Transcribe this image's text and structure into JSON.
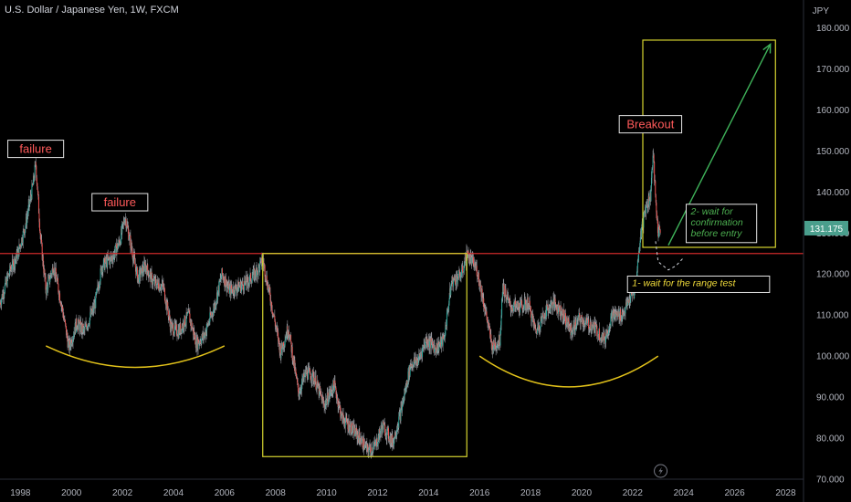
{
  "header": {
    "symbol_title": "U.S. Dollar / Japanese Yen, 1W, FXCM",
    "currency": "JPY"
  },
  "colors": {
    "background": "#000000",
    "candle_up": "#26a69a",
    "candle_down": "#ef5350",
    "wick": "#b0b3ba",
    "resistance": "#cc2a2a",
    "box": "#d6d430",
    "arc": "#e2c21a",
    "arrow": "#3fb35a",
    "label_red": "#ff5a5a",
    "label_green": "#4caf50",
    "label_yellow": "#f2dd3b",
    "price_badge": "#4a9e8c"
  },
  "chart_data": {
    "type": "candlestick",
    "title": "U.S. Dollar / Japanese Yen, 1W, FXCM",
    "xlim": [
      1997.2,
      2028.7
    ],
    "ylim": [
      70,
      185
    ],
    "x_ticks": [
      "1998",
      "2000",
      "2002",
      "2004",
      "2006",
      "2008",
      "2010",
      "2012",
      "2014",
      "2016",
      "2018",
      "2020",
      "2022",
      "2024",
      "2026",
      "2028"
    ],
    "y_ticks": [
      "70.000",
      "80.000",
      "90.000",
      "100.000",
      "110.000",
      "120.000",
      "130.000",
      "140.000",
      "150.000",
      "160.000",
      "170.000",
      "180.000"
    ],
    "last_price": "131.175",
    "last_price_value": 131.175,
    "price_path": [
      [
        1997.2,
        113
      ],
      [
        1997.6,
        121
      ],
      [
        1997.9,
        125
      ],
      [
        1998.2,
        132
      ],
      [
        1998.5,
        142
      ],
      [
        1998.6,
        147
      ],
      [
        1998.8,
        128
      ],
      [
        1999.0,
        116
      ],
      [
        1999.3,
        122
      ],
      [
        1999.6,
        113
      ],
      [
        1999.9,
        102
      ],
      [
        2000.2,
        108
      ],
      [
        2000.5,
        106
      ],
      [
        2000.9,
        112
      ],
      [
        2001.2,
        122
      ],
      [
        2001.6,
        124
      ],
      [
        2001.9,
        128
      ],
      [
        2002.1,
        134
      ],
      [
        2002.3,
        128
      ],
      [
        2002.6,
        119
      ],
      [
        2002.9,
        122
      ],
      [
        2003.2,
        118
      ],
      [
        2003.6,
        117
      ],
      [
        2003.9,
        107
      ],
      [
        2004.2,
        106
      ],
      [
        2004.6,
        110
      ],
      [
        2004.9,
        103
      ],
      [
        2005.2,
        105
      ],
      [
        2005.6,
        112
      ],
      [
        2005.9,
        120
      ],
      [
        2006.2,
        116
      ],
      [
        2006.6,
        117
      ],
      [
        2006.9,
        118
      ],
      [
        2007.3,
        121
      ],
      [
        2007.5,
        123.5
      ],
      [
        2007.8,
        114
      ],
      [
        2008.2,
        101
      ],
      [
        2008.5,
        107
      ],
      [
        2008.9,
        91
      ],
      [
        2009.2,
        96
      ],
      [
        2009.5,
        95
      ],
      [
        2009.9,
        88
      ],
      [
        2010.3,
        93
      ],
      [
        2010.6,
        85
      ],
      [
        2010.9,
        83
      ],
      [
        2011.3,
        80
      ],
      [
        2011.6,
        77
      ],
      [
        2011.9,
        78
      ],
      [
        2012.2,
        83
      ],
      [
        2012.6,
        79
      ],
      [
        2012.9,
        86
      ],
      [
        2013.3,
        98
      ],
      [
        2013.6,
        99
      ],
      [
        2013.9,
        104
      ],
      [
        2014.3,
        102
      ],
      [
        2014.6,
        104
      ],
      [
        2014.9,
        118
      ],
      [
        2015.3,
        120
      ],
      [
        2015.5,
        125
      ],
      [
        2015.9,
        121
      ],
      [
        2016.2,
        112
      ],
      [
        2016.5,
        102
      ],
      [
        2016.8,
        104
      ],
      [
        2016.9,
        117
      ],
      [
        2017.2,
        112
      ],
      [
        2017.6,
        112
      ],
      [
        2017.9,
        113
      ],
      [
        2018.2,
        106
      ],
      [
        2018.6,
        111
      ],
      [
        2018.9,
        113
      ],
      [
        2019.2,
        111
      ],
      [
        2019.6,
        106
      ],
      [
        2019.9,
        109
      ],
      [
        2020.2,
        108
      ],
      [
        2020.5,
        107
      ],
      [
        2020.9,
        104
      ],
      [
        2021.2,
        110
      ],
      [
        2021.6,
        110
      ],
      [
        2021.9,
        114
      ],
      [
        2022.1,
        116
      ],
      [
        2022.3,
        129
      ],
      [
        2022.5,
        136
      ],
      [
        2022.7,
        139
      ],
      [
        2022.8,
        150
      ],
      [
        2022.9,
        138
      ],
      [
        2023.0,
        130
      ],
      [
        2023.1,
        131.2
      ]
    ],
    "resistance_level": 125,
    "boxes": [
      {
        "x0": 2007.5,
        "x1": 2015.5,
        "y0": 75.5,
        "y1": 125
      },
      {
        "x0": 2022.4,
        "x1": 2027.6,
        "y0": 126.5,
        "y1": 177
      }
    ],
    "arcs": [
      {
        "x0": 1999.0,
        "y0": 102.5,
        "cx": 2002.5,
        "cy": 92,
        "x1": 2006.0,
        "y1": 102.5
      },
      {
        "x0": 2016.0,
        "y0": 100.0,
        "cx": 2019.5,
        "cy": 85,
        "x1": 2023.0,
        "y1": 100.0
      }
    ],
    "arrow": {
      "from": [
        2023.4,
        127
      ],
      "to": [
        2027.4,
        176
      ]
    },
    "dashed_path": [
      [
        2022.9,
        128
      ],
      [
        2023.0,
        123
      ],
      [
        2023.4,
        121
      ],
      [
        2023.7,
        122
      ],
      [
        2024.0,
        124
      ]
    ],
    "annotations": [
      {
        "text": "failure",
        "x": 1998.6,
        "y": 150.5
      },
      {
        "text": "failure",
        "x": 2001.9,
        "y": 137.5
      },
      {
        "text": "Breakout",
        "x": 2022.7,
        "y": 156.5
      }
    ],
    "notes": [
      {
        "lines": [
          "2- wait for",
          "confirmation",
          "before entry"
        ],
        "x": 2024.1,
        "y": 137
      },
      {
        "lines": [
          "1- wait for the range test"
        ],
        "x": 2021.8,
        "y": 119.5
      }
    ]
  }
}
